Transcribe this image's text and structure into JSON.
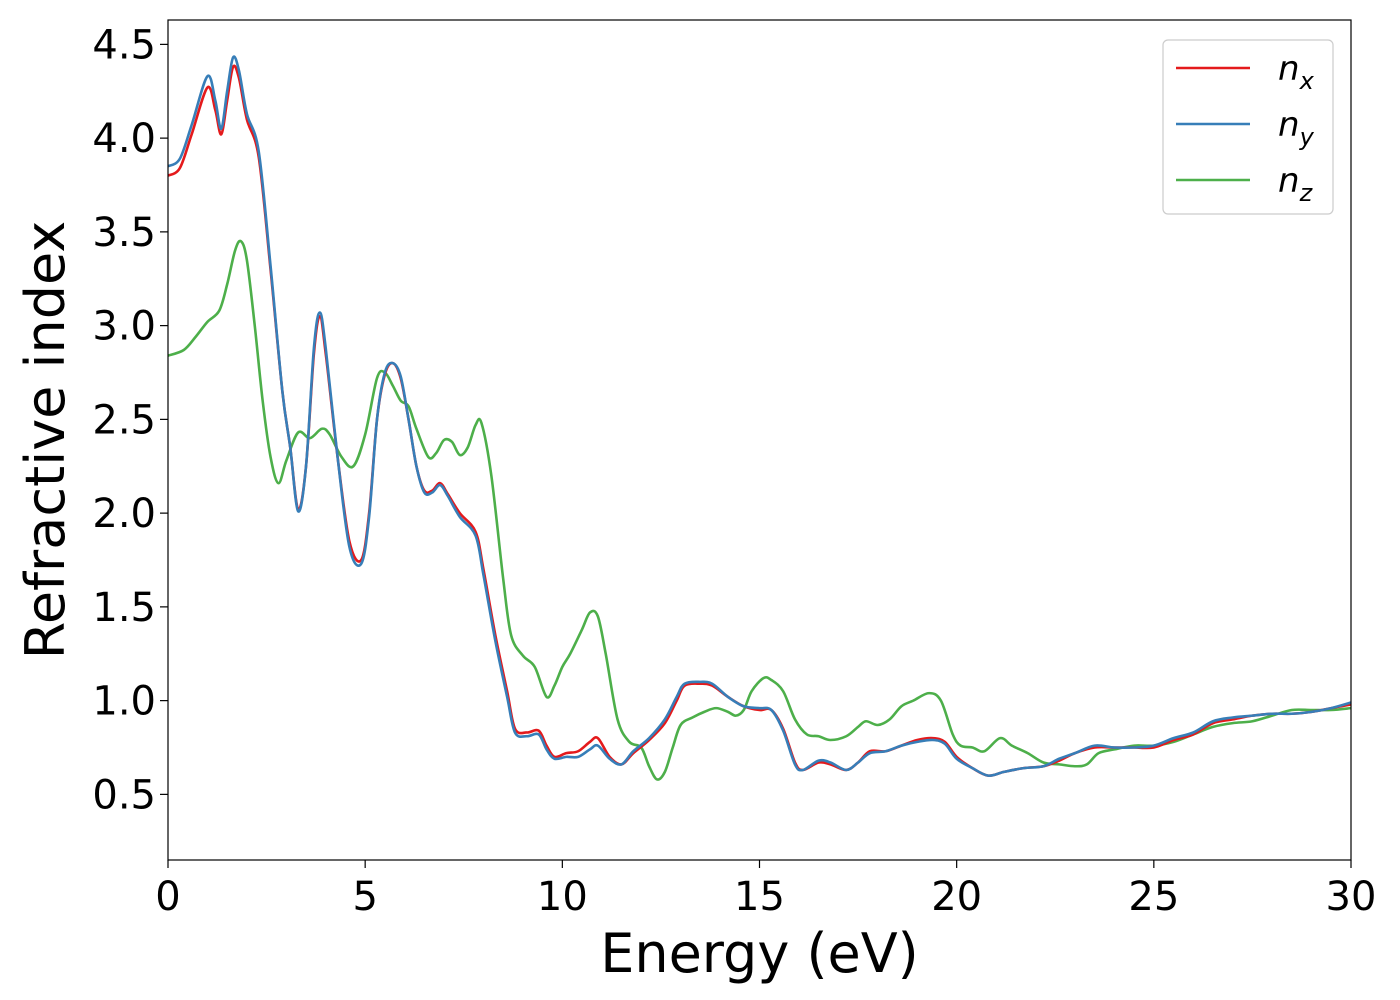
{
  "chart_data": {
    "type": "line",
    "title": "",
    "xlabel": "Energy (eV)",
    "ylabel": "Refractive index",
    "xlim": [
      0,
      30
    ],
    "ylim": [
      0.15,
      4.63
    ],
    "xticks": [
      0,
      5,
      10,
      15,
      20,
      25,
      30
    ],
    "xtick_labels": [
      "0",
      "5",
      "10",
      "15",
      "20",
      "25",
      "30"
    ],
    "yticks": [
      0.5,
      1.0,
      1.5,
      2.0,
      2.5,
      3.0,
      3.5,
      4.0,
      4.5
    ],
    "ytick_labels": [
      "0.5",
      "1.0",
      "1.5",
      "2.0",
      "2.5",
      "3.0",
      "3.5",
      "4.0",
      "4.5"
    ],
    "grid": false,
    "legend_position": "top-right",
    "series": [
      {
        "name": "n_x",
        "legend_main": "n",
        "legend_sub": "x",
        "color": "#e41a1c",
        "points": [
          [
            0,
            3.8
          ],
          [
            0.3,
            3.84
          ],
          [
            0.6,
            4.02
          ],
          [
            1.0,
            4.27
          ],
          [
            1.2,
            4.15
          ],
          [
            1.35,
            4.02
          ],
          [
            1.5,
            4.2
          ],
          [
            1.65,
            4.38
          ],
          [
            1.8,
            4.32
          ],
          [
            2.0,
            4.1
          ],
          [
            2.3,
            3.9
          ],
          [
            2.6,
            3.3
          ],
          [
            2.9,
            2.65
          ],
          [
            3.1,
            2.35
          ],
          [
            3.3,
            2.02
          ],
          [
            3.5,
            2.25
          ],
          [
            3.7,
            2.85
          ],
          [
            3.85,
            3.05
          ],
          [
            4.0,
            2.85
          ],
          [
            4.3,
            2.3
          ],
          [
            4.6,
            1.85
          ],
          [
            4.9,
            1.75
          ],
          [
            5.1,
            2.0
          ],
          [
            5.3,
            2.5
          ],
          [
            5.5,
            2.74
          ],
          [
            5.7,
            2.8
          ],
          [
            5.9,
            2.72
          ],
          [
            6.1,
            2.5
          ],
          [
            6.3,
            2.25
          ],
          [
            6.5,
            2.12
          ],
          [
            6.7,
            2.12
          ],
          [
            6.9,
            2.16
          ],
          [
            7.1,
            2.1
          ],
          [
            7.4,
            2.0
          ],
          [
            7.8,
            1.9
          ],
          [
            8.0,
            1.7
          ],
          [
            8.3,
            1.35
          ],
          [
            8.6,
            1.05
          ],
          [
            8.8,
            0.85
          ],
          [
            9.1,
            0.83
          ],
          [
            9.4,
            0.84
          ],
          [
            9.6,
            0.76
          ],
          [
            9.8,
            0.7
          ],
          [
            10.1,
            0.72
          ],
          [
            10.4,
            0.73
          ],
          [
            10.7,
            0.78
          ],
          [
            10.9,
            0.8
          ],
          [
            11.2,
            0.7
          ],
          [
            11.5,
            0.66
          ],
          [
            11.8,
            0.72
          ],
          [
            12.2,
            0.79
          ],
          [
            12.6,
            0.88
          ],
          [
            12.9,
            1.0
          ],
          [
            13.1,
            1.08
          ],
          [
            13.5,
            1.09
          ],
          [
            13.8,
            1.08
          ],
          [
            14.2,
            1.02
          ],
          [
            14.6,
            0.97
          ],
          [
            15.0,
            0.95
          ],
          [
            15.3,
            0.95
          ],
          [
            15.6,
            0.85
          ],
          [
            15.9,
            0.67
          ],
          [
            16.1,
            0.63
          ],
          [
            16.5,
            0.67
          ],
          [
            16.8,
            0.66
          ],
          [
            17.2,
            0.63
          ],
          [
            17.5,
            0.67
          ],
          [
            17.8,
            0.73
          ],
          [
            18.2,
            0.73
          ],
          [
            18.6,
            0.76
          ],
          [
            19.0,
            0.79
          ],
          [
            19.4,
            0.8
          ],
          [
            19.7,
            0.78
          ],
          [
            20.0,
            0.7
          ],
          [
            20.4,
            0.64
          ],
          [
            20.8,
            0.6
          ],
          [
            21.2,
            0.62
          ],
          [
            21.7,
            0.64
          ],
          [
            22.2,
            0.65
          ],
          [
            22.6,
            0.68
          ],
          [
            23.0,
            0.72
          ],
          [
            23.5,
            0.75
          ],
          [
            24.0,
            0.75
          ],
          [
            24.5,
            0.75
          ],
          [
            25.0,
            0.75
          ],
          [
            25.5,
            0.79
          ],
          [
            26.0,
            0.82
          ],
          [
            26.5,
            0.88
          ],
          [
            27.0,
            0.9
          ],
          [
            27.5,
            0.92
          ],
          [
            28.0,
            0.93
          ],
          [
            28.5,
            0.93
          ],
          [
            29.0,
            0.94
          ],
          [
            29.5,
            0.96
          ],
          [
            30.0,
            0.98
          ]
        ]
      },
      {
        "name": "n_y",
        "legend_main": "n",
        "legend_sub": "y",
        "color": "#377eb8",
        "points": [
          [
            0,
            3.85
          ],
          [
            0.3,
            3.89
          ],
          [
            0.6,
            4.07
          ],
          [
            1.0,
            4.33
          ],
          [
            1.2,
            4.2
          ],
          [
            1.35,
            4.05
          ],
          [
            1.5,
            4.25
          ],
          [
            1.65,
            4.43
          ],
          [
            1.8,
            4.36
          ],
          [
            2.0,
            4.13
          ],
          [
            2.3,
            3.93
          ],
          [
            2.6,
            3.32
          ],
          [
            2.9,
            2.65
          ],
          [
            3.1,
            2.35
          ],
          [
            3.3,
            2.01
          ],
          [
            3.5,
            2.25
          ],
          [
            3.7,
            2.88
          ],
          [
            3.85,
            3.07
          ],
          [
            4.0,
            2.88
          ],
          [
            4.3,
            2.3
          ],
          [
            4.6,
            1.82
          ],
          [
            4.9,
            1.73
          ],
          [
            5.1,
            1.98
          ],
          [
            5.3,
            2.5
          ],
          [
            5.5,
            2.75
          ],
          [
            5.7,
            2.8
          ],
          [
            5.9,
            2.73
          ],
          [
            6.1,
            2.5
          ],
          [
            6.3,
            2.25
          ],
          [
            6.5,
            2.11
          ],
          [
            6.7,
            2.11
          ],
          [
            6.9,
            2.15
          ],
          [
            7.1,
            2.09
          ],
          [
            7.4,
            1.98
          ],
          [
            7.8,
            1.88
          ],
          [
            8.0,
            1.67
          ],
          [
            8.3,
            1.32
          ],
          [
            8.6,
            1.02
          ],
          [
            8.8,
            0.83
          ],
          [
            9.1,
            0.81
          ],
          [
            9.4,
            0.82
          ],
          [
            9.6,
            0.74
          ],
          [
            9.8,
            0.69
          ],
          [
            10.1,
            0.7
          ],
          [
            10.4,
            0.7
          ],
          [
            10.7,
            0.74
          ],
          [
            10.9,
            0.76
          ],
          [
            11.2,
            0.69
          ],
          [
            11.5,
            0.66
          ],
          [
            11.8,
            0.73
          ],
          [
            12.2,
            0.8
          ],
          [
            12.6,
            0.9
          ],
          [
            12.9,
            1.02
          ],
          [
            13.1,
            1.09
          ],
          [
            13.5,
            1.1
          ],
          [
            13.8,
            1.09
          ],
          [
            14.2,
            1.02
          ],
          [
            14.6,
            0.97
          ],
          [
            15.0,
            0.96
          ],
          [
            15.3,
            0.95
          ],
          [
            15.6,
            0.84
          ],
          [
            15.9,
            0.66
          ],
          [
            16.1,
            0.63
          ],
          [
            16.5,
            0.68
          ],
          [
            16.8,
            0.67
          ],
          [
            17.2,
            0.63
          ],
          [
            17.5,
            0.67
          ],
          [
            17.8,
            0.72
          ],
          [
            18.2,
            0.73
          ],
          [
            18.6,
            0.76
          ],
          [
            19.0,
            0.78
          ],
          [
            19.4,
            0.79
          ],
          [
            19.7,
            0.77
          ],
          [
            20.0,
            0.69
          ],
          [
            20.4,
            0.64
          ],
          [
            20.8,
            0.6
          ],
          [
            21.2,
            0.62
          ],
          [
            21.7,
            0.64
          ],
          [
            22.2,
            0.65
          ],
          [
            22.6,
            0.69
          ],
          [
            23.0,
            0.72
          ],
          [
            23.5,
            0.76
          ],
          [
            24.0,
            0.75
          ],
          [
            24.5,
            0.75
          ],
          [
            25.0,
            0.76
          ],
          [
            25.5,
            0.8
          ],
          [
            26.0,
            0.83
          ],
          [
            26.5,
            0.89
          ],
          [
            27.0,
            0.91
          ],
          [
            27.5,
            0.92
          ],
          [
            28.0,
            0.93
          ],
          [
            28.5,
            0.93
          ],
          [
            29.0,
            0.94
          ],
          [
            29.5,
            0.96
          ],
          [
            30.0,
            0.99
          ]
        ]
      },
      {
        "name": "n_z",
        "legend_main": "n",
        "legend_sub": "z",
        "color": "#4daf4a",
        "points": [
          [
            0,
            2.84
          ],
          [
            0.4,
            2.87
          ],
          [
            0.7,
            2.94
          ],
          [
            1.0,
            3.02
          ],
          [
            1.3,
            3.08
          ],
          [
            1.5,
            3.22
          ],
          [
            1.7,
            3.4
          ],
          [
            1.85,
            3.45
          ],
          [
            2.0,
            3.35
          ],
          [
            2.2,
            3.0
          ],
          [
            2.4,
            2.6
          ],
          [
            2.6,
            2.3
          ],
          [
            2.8,
            2.16
          ],
          [
            3.0,
            2.28
          ],
          [
            3.3,
            2.43
          ],
          [
            3.6,
            2.4
          ],
          [
            3.9,
            2.45
          ],
          [
            4.1,
            2.42
          ],
          [
            4.4,
            2.3
          ],
          [
            4.7,
            2.25
          ],
          [
            5.0,
            2.42
          ],
          [
            5.3,
            2.72
          ],
          [
            5.5,
            2.75
          ],
          [
            5.7,
            2.68
          ],
          [
            5.9,
            2.6
          ],
          [
            6.1,
            2.57
          ],
          [
            6.3,
            2.45
          ],
          [
            6.6,
            2.3
          ],
          [
            6.8,
            2.32
          ],
          [
            7.0,
            2.39
          ],
          [
            7.2,
            2.38
          ],
          [
            7.4,
            2.31
          ],
          [
            7.6,
            2.35
          ],
          [
            7.8,
            2.47
          ],
          [
            7.95,
            2.48
          ],
          [
            8.2,
            2.2
          ],
          [
            8.5,
            1.65
          ],
          [
            8.7,
            1.35
          ],
          [
            9.0,
            1.24
          ],
          [
            9.3,
            1.18
          ],
          [
            9.6,
            1.02
          ],
          [
            9.8,
            1.08
          ],
          [
            10.0,
            1.18
          ],
          [
            10.2,
            1.25
          ],
          [
            10.5,
            1.38
          ],
          [
            10.7,
            1.47
          ],
          [
            10.9,
            1.45
          ],
          [
            11.1,
            1.25
          ],
          [
            11.4,
            0.9
          ],
          [
            11.7,
            0.78
          ],
          [
            12.0,
            0.75
          ],
          [
            12.2,
            0.65
          ],
          [
            12.4,
            0.58
          ],
          [
            12.6,
            0.62
          ],
          [
            12.8,
            0.75
          ],
          [
            13.0,
            0.87
          ],
          [
            13.3,
            0.91
          ],
          [
            13.6,
            0.94
          ],
          [
            13.9,
            0.96
          ],
          [
            14.2,
            0.94
          ],
          [
            14.4,
            0.92
          ],
          [
            14.6,
            0.95
          ],
          [
            14.8,
            1.05
          ],
          [
            15.1,
            1.12
          ],
          [
            15.3,
            1.11
          ],
          [
            15.6,
            1.05
          ],
          [
            15.9,
            0.9
          ],
          [
            16.2,
            0.82
          ],
          [
            16.5,
            0.81
          ],
          [
            16.8,
            0.79
          ],
          [
            17.2,
            0.81
          ],
          [
            17.5,
            0.86
          ],
          [
            17.7,
            0.89
          ],
          [
            18.0,
            0.87
          ],
          [
            18.3,
            0.9
          ],
          [
            18.6,
            0.97
          ],
          [
            18.9,
            1.0
          ],
          [
            19.3,
            1.04
          ],
          [
            19.6,
            1.0
          ],
          [
            19.9,
            0.82
          ],
          [
            20.1,
            0.76
          ],
          [
            20.4,
            0.75
          ],
          [
            20.7,
            0.73
          ],
          [
            21.1,
            0.8
          ],
          [
            21.4,
            0.76
          ],
          [
            21.8,
            0.72
          ],
          [
            22.2,
            0.67
          ],
          [
            22.6,
            0.66
          ],
          [
            23.0,
            0.65
          ],
          [
            23.3,
            0.66
          ],
          [
            23.6,
            0.72
          ],
          [
            24.0,
            0.74
          ],
          [
            24.5,
            0.76
          ],
          [
            25.0,
            0.76
          ],
          [
            25.5,
            0.78
          ],
          [
            26.0,
            0.82
          ],
          [
            26.5,
            0.86
          ],
          [
            27.0,
            0.88
          ],
          [
            27.5,
            0.89
          ],
          [
            28.0,
            0.92
          ],
          [
            28.5,
            0.95
          ],
          [
            29.0,
            0.95
          ],
          [
            29.5,
            0.95
          ],
          [
            30.0,
            0.96
          ]
        ]
      }
    ]
  }
}
